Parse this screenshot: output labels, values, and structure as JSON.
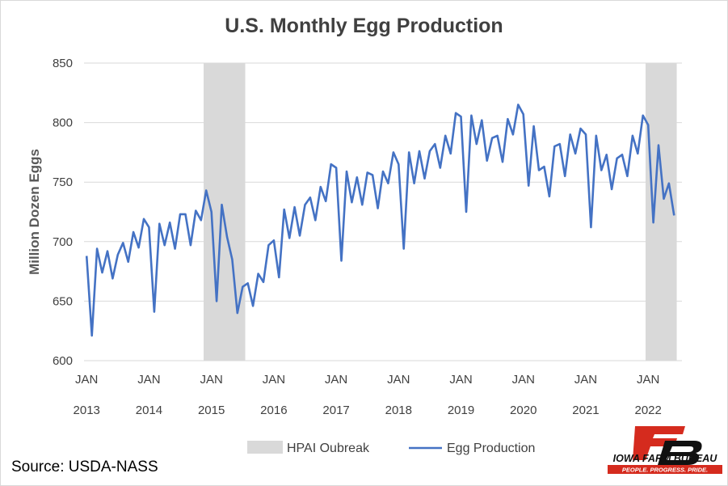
{
  "chart_data": {
    "type": "line",
    "title": "U.S. Monthly Egg Production",
    "ylabel": "Million Dozen Eggs",
    "ylim": [
      600,
      850
    ],
    "yticks": [
      600,
      650,
      700,
      750,
      800,
      850
    ],
    "grid": true,
    "x_month_label": "JAN",
    "years": [
      "2013",
      "2014",
      "2015",
      "2016",
      "2017",
      "2018",
      "2019",
      "2020",
      "2021",
      "2022"
    ],
    "shaded_periods": [
      {
        "name": "HPAI Oubreak",
        "start": "2014-12",
        "end": "2015-07"
      },
      {
        "name": "HPAI Oubreak",
        "start": "2022-01",
        "end": "2022-06"
      }
    ],
    "series": [
      {
        "name": "Egg Production",
        "start": "2013-01",
        "frequency": "monthly",
        "values": [
          688,
          621,
          694,
          674,
          692,
          669,
          689,
          699,
          683,
          708,
          695,
          719,
          712,
          641,
          715,
          697,
          716,
          694,
          723,
          723,
          697,
          726,
          718,
          743,
          725,
          650,
          731,
          704,
          685,
          640,
          662,
          665,
          646,
          673,
          666,
          697,
          701,
          670,
          727,
          703,
          729,
          705,
          731,
          737,
          718,
          746,
          734,
          765,
          762,
          684,
          759,
          733,
          754,
          731,
          758,
          756,
          728,
          759,
          749,
          775,
          765,
          694,
          775,
          749,
          776,
          753,
          776,
          782,
          762,
          789,
          774,
          808,
          805,
          725,
          806,
          782,
          802,
          768,
          787,
          789,
          767,
          803,
          790,
          815,
          807,
          747,
          797,
          760,
          763,
          738,
          780,
          782,
          755,
          790,
          774,
          795,
          790,
          712,
          789,
          760,
          773,
          744,
          770,
          773,
          755,
          789,
          774,
          806,
          798,
          716,
          781,
          736,
          749,
          722
        ],
        "color": "#4472c4"
      }
    ],
    "legend": {
      "placement": "bottom",
      "items": [
        "HPAI Oubreak",
        "Egg Production"
      ]
    },
    "colors": {
      "line": "#4472c4",
      "shade": "#d9d9d9",
      "grid": "#d9d9d9"
    }
  },
  "source": "Source: USDA-NASS",
  "logo": {
    "name": "IOWA FARM BUREAU",
    "tagline": "PEOPLE. PROGRESS. PRIDE.",
    "mark": "FB",
    "colors": {
      "red": "#d52b1e",
      "black": "#111111"
    }
  }
}
